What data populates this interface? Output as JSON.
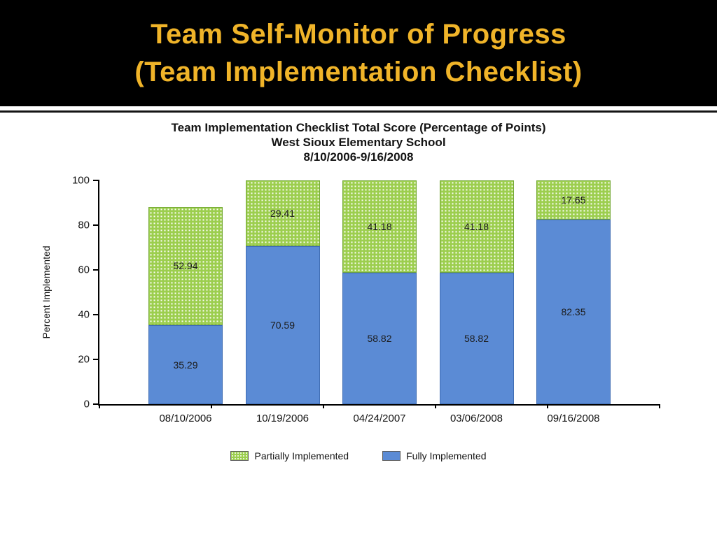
{
  "slide": {
    "title_line1": "Team Self-Monitor of Progress",
    "title_line2": "(Team Implementation Checklist)",
    "title_color": "#F0B429"
  },
  "chart_data": {
    "type": "bar",
    "subtype": "stacked",
    "title_lines": [
      "Team Implementation Checklist Total Score (Percentage of Points)",
      "West Sioux Elementary School",
      "8/10/2006-9/16/2008"
    ],
    "ylabel": "Percent Implemented",
    "xlabel": "",
    "ylim": [
      0,
      100
    ],
    "yticks": [
      0,
      20,
      40,
      60,
      80,
      100
    ],
    "grid": false,
    "legend_position": "bottom",
    "categories": [
      "08/10/2006",
      "10/19/2006",
      "04/24/2007",
      "03/06/2008",
      "09/16/2008"
    ],
    "series": [
      {
        "name": "Fully Implemented",
        "color": "#5B8BD5",
        "pattern": "solid",
        "values": [
          35.29,
          70.59,
          58.82,
          58.82,
          82.35
        ]
      },
      {
        "name": "Partially Implemented",
        "color": "#9CCE4E",
        "pattern": "white-dots",
        "values": [
          52.94,
          29.41,
          41.18,
          41.18,
          17.65
        ]
      }
    ],
    "legend": [
      {
        "label": "Partially Implemented",
        "swatch": "green-dotted"
      },
      {
        "label": "Fully Implemented",
        "swatch": "blue"
      }
    ]
  }
}
